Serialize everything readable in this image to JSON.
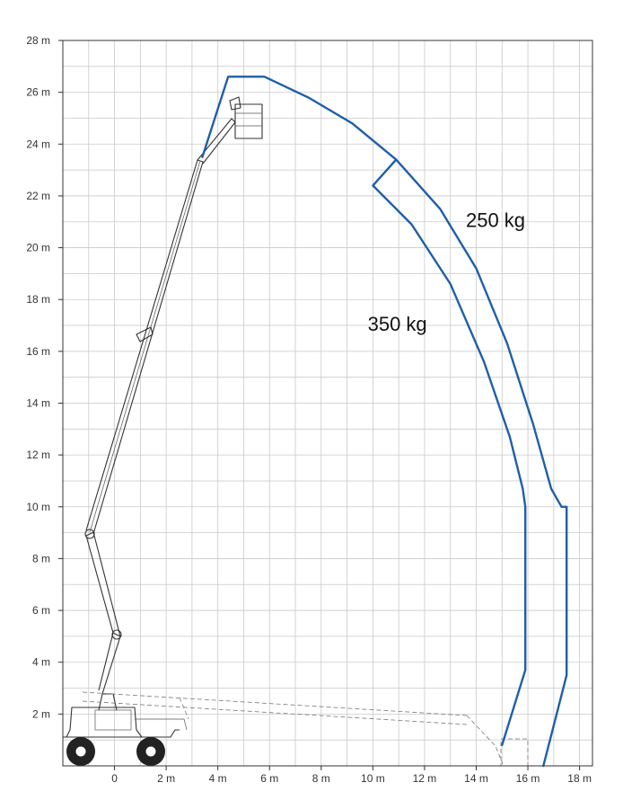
{
  "chart_data": {
    "type": "line",
    "title": "",
    "xlabel": "",
    "ylabel": "",
    "xlim": [
      -2,
      18.5
    ],
    "ylim": [
      0,
      28
    ],
    "x_ticks": [
      0,
      2,
      4,
      6,
      8,
      10,
      12,
      14,
      16,
      18
    ],
    "x_tick_labels": [
      "0",
      "2 m",
      "4 m",
      "6 m",
      "8 m",
      "10 m",
      "12 m",
      "14 m",
      "16 m",
      "18 m"
    ],
    "y_ticks": [
      2,
      4,
      6,
      8,
      10,
      12,
      14,
      16,
      18,
      20,
      22,
      24,
      26,
      28
    ],
    "y_tick_labels": [
      "2 m",
      "4 m",
      "6 m",
      "8 m",
      "10 m",
      "12 m",
      "14 m",
      "16 m",
      "18 m",
      "20 m",
      "22 m",
      "24 m",
      "26 m",
      "28 m"
    ],
    "grid": true,
    "series": [
      {
        "name": "250 kg",
        "label": "250 kg",
        "color": "#1f5fa8",
        "x": [
          3.4,
          4.4,
          5.8,
          7.5,
          9.2,
          10.9,
          12.6,
          14.0,
          15.2,
          16.2,
          16.9,
          17.3,
          17.5,
          17.5,
          16.6
        ],
        "y": [
          23.5,
          26.6,
          26.6,
          25.8,
          24.8,
          23.4,
          21.5,
          19.2,
          16.3,
          13.2,
          10.7,
          10.0,
          10.0,
          3.5,
          0
        ]
      },
      {
        "name": "350 kg",
        "label": "350 kg",
        "color": "#1f5fa8",
        "x": [
          10.0,
          10.9,
          10.0,
          11.5,
          13.0,
          14.3,
          15.3,
          15.8,
          15.9,
          15.9,
          15.0
        ],
        "y": [
          22.4,
          23.4,
          22.4,
          20.9,
          18.6,
          15.6,
          12.7,
          10.7,
          10.0,
          3.7,
          0.8
        ]
      }
    ]
  }
}
